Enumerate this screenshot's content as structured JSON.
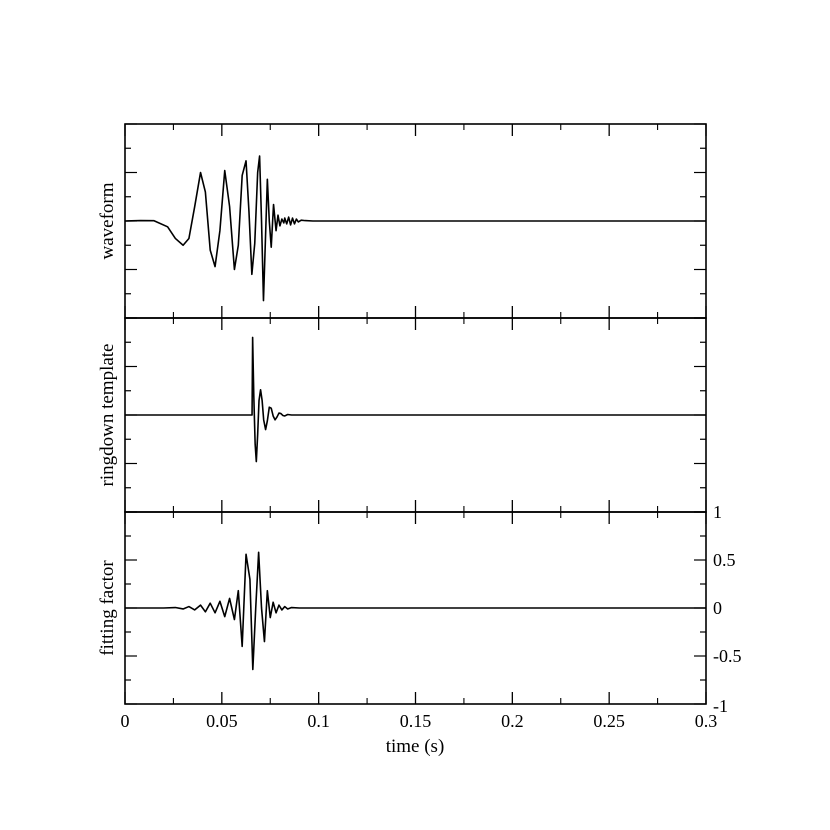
{
  "chart_data": {
    "type": "line",
    "panels": [
      {
        "name": "waveform",
        "ylabel": "waveform",
        "ylim": [
          -1,
          1
        ],
        "series": [
          {
            "samples": [
              [
                0.0,
                0.0
              ],
              [
                0.008,
                0.005
              ],
              [
                0.015,
                0.003
              ],
              [
                0.022,
                -0.06
              ],
              [
                0.026,
                -0.18
              ],
              [
                0.03,
                -0.25
              ],
              [
                0.033,
                -0.18
              ],
              [
                0.036,
                0.15
              ],
              [
                0.039,
                0.5
              ],
              [
                0.0415,
                0.3
              ],
              [
                0.044,
                -0.3
              ],
              [
                0.0465,
                -0.47
              ],
              [
                0.049,
                -0.1
              ],
              [
                0.0515,
                0.52
              ],
              [
                0.054,
                0.15
              ],
              [
                0.0565,
                -0.5
              ],
              [
                0.0585,
                -0.25
              ],
              [
                0.0605,
                0.47
              ],
              [
                0.0625,
                0.62
              ],
              [
                0.064,
                0.1
              ],
              [
                0.0655,
                -0.55
              ],
              [
                0.067,
                -0.23
              ],
              [
                0.0685,
                0.5
              ],
              [
                0.0695,
                0.67
              ],
              [
                0.0705,
                0.0
              ],
              [
                0.0715,
                -0.82
              ],
              [
                0.0725,
                -0.2
              ],
              [
                0.0735,
                0.43
              ],
              [
                0.0745,
                0.0
              ],
              [
                0.0755,
                -0.27
              ],
              [
                0.0767,
                0.17
              ],
              [
                0.078,
                -0.1
              ],
              [
                0.079,
                0.06
              ],
              [
                0.08,
                -0.05
              ],
              [
                0.081,
                0.02
              ],
              [
                0.082,
                -0.02
              ],
              [
                0.0825,
                0.03
              ],
              [
                0.0835,
                -0.03
              ],
              [
                0.0845,
                0.04
              ],
              [
                0.0855,
                -0.04
              ],
              [
                0.0865,
                0.03
              ],
              [
                0.0875,
                -0.03
              ],
              [
                0.0885,
                0.02
              ],
              [
                0.0895,
                -0.01
              ],
              [
                0.091,
                0.008
              ],
              [
                0.093,
                0.004
              ],
              [
                0.097,
                0.0
              ],
              [
                0.3,
                0.0
              ]
            ]
          }
        ]
      },
      {
        "name": "ringdown template",
        "ylabel": "ringdown template",
        "ylim": [
          -1,
          1
        ],
        "series": [
          {
            "samples": [
              [
                0.0,
                0.0
              ],
              [
                0.0656,
                0.0
              ],
              [
                0.0659,
                0.8
              ],
              [
                0.0665,
                0.2
              ],
              [
                0.0672,
                -0.3
              ],
              [
                0.0678,
                -0.48
              ],
              [
                0.0685,
                -0.2
              ],
              [
                0.0692,
                0.15
              ],
              [
                0.07,
                0.26
              ],
              [
                0.0708,
                0.15
              ],
              [
                0.0716,
                -0.05
              ],
              [
                0.0726,
                -0.15
              ],
              [
                0.0735,
                -0.06
              ],
              [
                0.0745,
                0.08
              ],
              [
                0.0755,
                0.07
              ],
              [
                0.0765,
                -0.01
              ],
              [
                0.0775,
                -0.05
              ],
              [
                0.0785,
                -0.02
              ],
              [
                0.0795,
                0.02
              ],
              [
                0.0805,
                0.015
              ],
              [
                0.0815,
                -0.005
              ],
              [
                0.0825,
                -0.01
              ],
              [
                0.084,
                0.005
              ],
              [
                0.086,
                0.0
              ],
              [
                0.09,
                0.0
              ],
              [
                0.3,
                0.0
              ]
            ]
          }
        ]
      },
      {
        "name": "fitting factor",
        "ylabel": "fitting factor",
        "ylim": [
          -1,
          1
        ],
        "right_axis_ticks": [
          "1",
          "0.5",
          "0",
          "-0.5",
          "-1"
        ],
        "series": [
          {
            "samples": [
              [
                0.0,
                0.0
              ],
              [
                0.02,
                0.0
              ],
              [
                0.026,
                0.005
              ],
              [
                0.03,
                -0.01
              ],
              [
                0.033,
                0.015
              ],
              [
                0.036,
                -0.02
              ],
              [
                0.039,
                0.03
              ],
              [
                0.0415,
                -0.04
              ],
              [
                0.044,
                0.05
              ],
              [
                0.0465,
                -0.05
              ],
              [
                0.049,
                0.07
              ],
              [
                0.0515,
                -0.09
              ],
              [
                0.054,
                0.1
              ],
              [
                0.0565,
                -0.12
              ],
              [
                0.0585,
                0.18
              ],
              [
                0.0605,
                -0.4
              ],
              [
                0.0625,
                0.56
              ],
              [
                0.0645,
                0.3
              ],
              [
                0.066,
                -0.64
              ],
              [
                0.0675,
                0.0
              ],
              [
                0.069,
                0.58
              ],
              [
                0.0705,
                0.0
              ],
              [
                0.072,
                -0.35
              ],
              [
                0.0735,
                0.18
              ],
              [
                0.075,
                -0.1
              ],
              [
                0.0765,
                0.06
              ],
              [
                0.078,
                -0.05
              ],
              [
                0.0795,
                0.03
              ],
              [
                0.081,
                -0.02
              ],
              [
                0.0825,
                0.015
              ],
              [
                0.084,
                -0.01
              ],
              [
                0.086,
                0.005
              ],
              [
                0.09,
                0.0
              ],
              [
                0.3,
                0.0
              ]
            ]
          }
        ]
      }
    ],
    "xlabel": "time (s)",
    "xlim": [
      0,
      0.3
    ],
    "x_tick_values": [
      0,
      0.05,
      0.1,
      0.15,
      0.2,
      0.25,
      0.3
    ],
    "x_tick_labels": [
      "0",
      "0.05",
      "0.1",
      "0.15",
      "0.2",
      "0.25",
      "0.3"
    ],
    "grid": false,
    "line_color": "#000000",
    "background": "#ffffff"
  }
}
